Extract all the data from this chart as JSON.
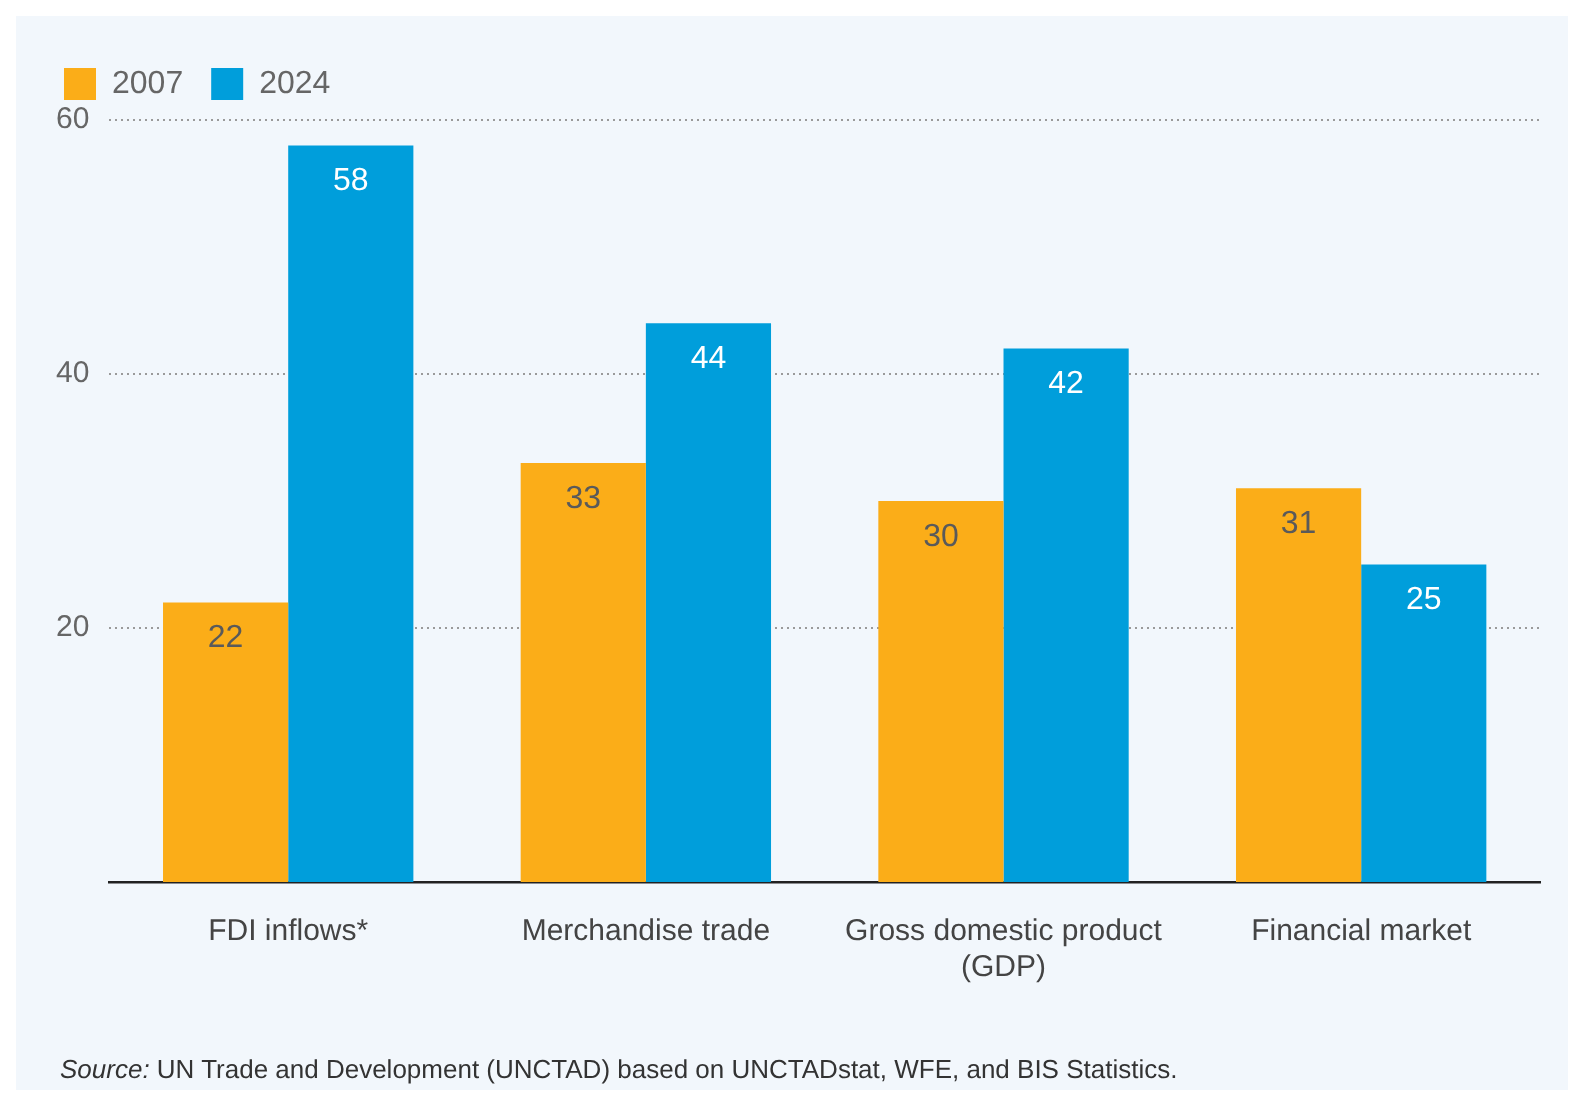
{
  "chart_data": {
    "type": "bar",
    "categories": [
      "FDI inflows*",
      "Merchandise trade",
      "Gross domestic product (GDP)",
      "Financial market"
    ],
    "series": [
      {
        "name": "2007",
        "color": "#fbad18",
        "values": [
          22,
          33,
          30,
          31
        ]
      },
      {
        "name": "2024",
        "color": "#009edb",
        "values": [
          58,
          44,
          42,
          25
        ]
      }
    ],
    "ylim": [
      0,
      60
    ],
    "yticks": [
      20,
      40,
      60
    ],
    "grid": "y",
    "legend": "top left",
    "data_labels": true,
    "annotations": [
      "Source: UN Trade and Development (UNCTAD) based on UNCTADstat, WFE, and BIS Statistics."
    ]
  }
}
